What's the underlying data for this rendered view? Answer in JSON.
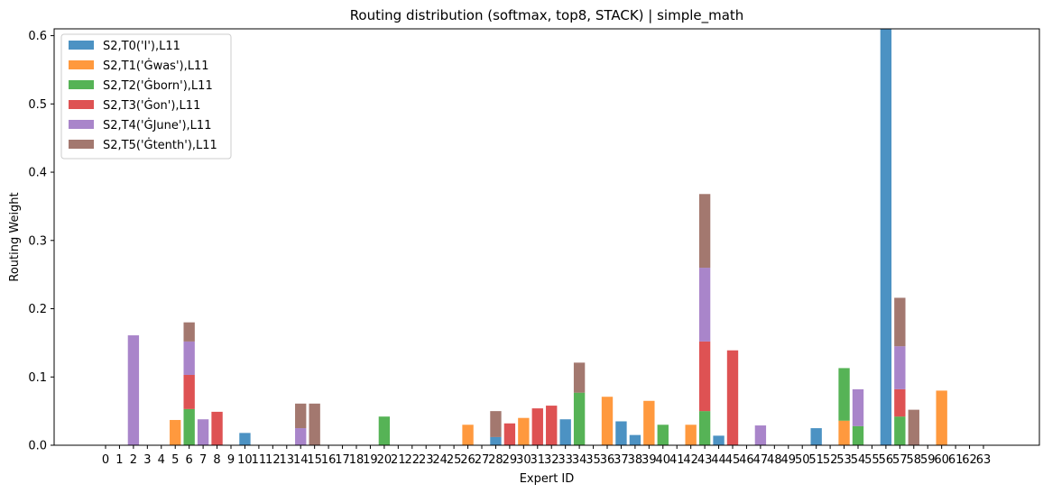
{
  "chart_data": {
    "type": "bar",
    "stacked": true,
    "title": "Routing distribution (softmax, top8, STACK) | simple_math",
    "xlabel": "Expert ID",
    "ylabel": "Routing Weight",
    "ylim": [
      0,
      0.61
    ],
    "yticks": [
      "0.0",
      "0.1",
      "0.2",
      "0.3",
      "0.4",
      "0.5",
      "0.6"
    ],
    "grid": false,
    "legend_position": "top-left",
    "categories": [
      "0",
      "1",
      "2",
      "3",
      "4",
      "5",
      "6",
      "7",
      "8",
      "9",
      "10",
      "11",
      "12",
      "13",
      "14",
      "15",
      "16",
      "17",
      "18",
      "19",
      "20",
      "21",
      "22",
      "23",
      "24",
      "25",
      "26",
      "27",
      "28",
      "29",
      "30",
      "31",
      "32",
      "33",
      "34",
      "35",
      "36",
      "37",
      "38",
      "39",
      "40",
      "41",
      "42",
      "43",
      "44",
      "45",
      "46",
      "47",
      "48",
      "49",
      "50",
      "51",
      "52",
      "53",
      "54",
      "55",
      "56",
      "57",
      "58",
      "59",
      "60",
      "61",
      "62",
      "63"
    ],
    "series": [
      {
        "name": "S2,T0('I'),L11",
        "color": "#1f77b4",
        "values": [
          0,
          0,
          0,
          0,
          0,
          0,
          0,
          0,
          0,
          0,
          0.018,
          0,
          0,
          0,
          0,
          0,
          0,
          0,
          0,
          0,
          0,
          0,
          0,
          0,
          0,
          0,
          0,
          0,
          0.012,
          0,
          0,
          0,
          0,
          0.038,
          0,
          0,
          0,
          0.035,
          0.015,
          0,
          0,
          0,
          0,
          0,
          0.014,
          0,
          0,
          0,
          0,
          0,
          0,
          0.025,
          0,
          0,
          0,
          0,
          0.61,
          0,
          0,
          0,
          0,
          0,
          0,
          0
        ]
      },
      {
        "name": "S2,T1('Ġwas'),L11",
        "color": "#ff7f0e",
        "values": [
          0,
          0,
          0,
          0,
          0,
          0.037,
          0,
          0,
          0,
          0,
          0,
          0,
          0,
          0,
          0,
          0,
          0,
          0,
          0,
          0,
          0,
          0,
          0,
          0,
          0,
          0,
          0.03,
          0,
          0,
          0,
          0.04,
          0,
          0,
          0,
          0,
          0,
          0.071,
          0,
          0,
          0.065,
          0,
          0,
          0.03,
          0,
          0,
          0,
          0,
          0,
          0,
          0,
          0,
          0,
          0,
          0.036,
          0,
          0,
          0,
          0,
          0,
          0,
          0.08,
          0,
          0,
          0
        ]
      },
      {
        "name": "S2,T2('Ġborn'),L11",
        "color": "#2ca02c",
        "values": [
          0,
          0,
          0,
          0,
          0,
          0,
          0.053,
          0,
          0,
          0,
          0,
          0,
          0,
          0,
          0,
          0,
          0,
          0,
          0,
          0,
          0.042,
          0,
          0,
          0,
          0,
          0,
          0,
          0,
          0,
          0,
          0,
          0,
          0,
          0,
          0.077,
          0,
          0,
          0,
          0,
          0,
          0.03,
          0,
          0,
          0.05,
          0,
          0,
          0,
          0,
          0,
          0,
          0,
          0,
          0,
          0.077,
          0.028,
          0,
          0,
          0.042,
          0,
          0,
          0,
          0,
          0,
          0
        ]
      },
      {
        "name": "S2,T3('Ġon'),L11",
        "color": "#d62728",
        "values": [
          0,
          0,
          0,
          0,
          0,
          0,
          0.05,
          0,
          0.049,
          0,
          0,
          0,
          0,
          0,
          0,
          0,
          0,
          0,
          0,
          0,
          0,
          0,
          0,
          0,
          0,
          0,
          0,
          0,
          0,
          0.032,
          0,
          0.054,
          0.058,
          0,
          0,
          0,
          0,
          0,
          0,
          0,
          0,
          0,
          0,
          0.102,
          0,
          0.139,
          0,
          0,
          0,
          0,
          0,
          0,
          0,
          0,
          0,
          0,
          0,
          0.04,
          0,
          0,
          0,
          0,
          0,
          0
        ]
      },
      {
        "name": "S2,T4('ĠJune'),L11",
        "color": "#9467bd",
        "values": [
          0,
          0,
          0.161,
          0,
          0,
          0,
          0.049,
          0.038,
          0,
          0,
          0,
          0,
          0,
          0,
          0.025,
          0,
          0,
          0,
          0,
          0,
          0,
          0,
          0,
          0,
          0,
          0,
          0,
          0,
          0,
          0,
          0,
          0,
          0,
          0,
          0,
          0,
          0,
          0,
          0,
          0,
          0,
          0,
          0,
          0.108,
          0,
          0,
          0,
          0.029,
          0,
          0,
          0,
          0,
          0,
          0,
          0.054,
          0,
          0,
          0.063,
          0,
          0,
          0,
          0,
          0,
          0
        ]
      },
      {
        "name": "S2,T5('Ġtenth'),L11",
        "color": "#8c564b",
        "values": [
          0,
          0,
          0,
          0,
          0,
          0,
          0.028,
          0,
          0,
          0,
          0,
          0,
          0,
          0,
          0.036,
          0.061,
          0,
          0,
          0,
          0,
          0,
          0,
          0,
          0,
          0,
          0,
          0,
          0,
          0.038,
          0,
          0,
          0,
          0,
          0,
          0.044,
          0,
          0,
          0,
          0,
          0,
          0,
          0,
          0,
          0.108,
          0,
          0,
          0,
          0,
          0,
          0,
          0,
          0,
          0,
          0,
          0,
          0,
          0,
          0.071,
          0.052,
          0,
          0,
          0,
          0,
          0
        ]
      }
    ]
  }
}
